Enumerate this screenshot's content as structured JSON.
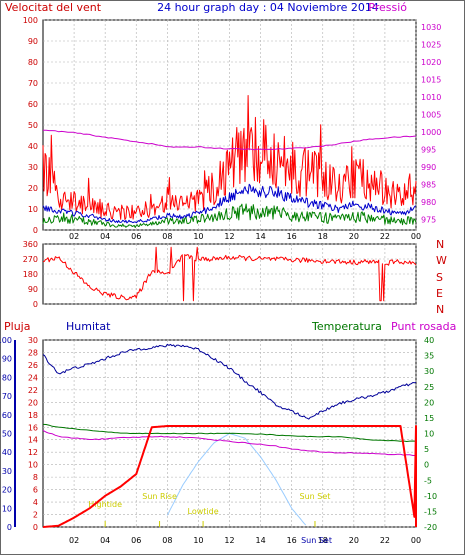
{
  "header": {
    "left": "Velocitat del vent",
    "center": "24 hour graph day : 04 Noviembre 2014",
    "right": "Pressió"
  },
  "colors": {
    "wind_gust": "#ff0000",
    "wind_avg": "#0000cc",
    "wind_min": "#008000",
    "pressure": "#cc00cc",
    "rain": "#ff0000",
    "humidity": "#000099",
    "temperature": "#007700",
    "dewpoint": "#cc00cc",
    "sun": "#99ccff",
    "sun_label": "#cccc00",
    "axis_wind": "#cc0000",
    "axis_pressure": "#cc00cc",
    "axis_humidity": "#0000aa",
    "axis_temp": "#007700"
  },
  "x_ticks": [
    "02",
    "04",
    "06",
    "08",
    "10",
    "12",
    "14",
    "16",
    "18",
    "20",
    "22",
    "00"
  ],
  "panel1": {
    "left_ticks": [
      "0",
      "10",
      "20",
      "30",
      "40",
      "50",
      "60",
      "70",
      "80",
      "90",
      "100"
    ],
    "right_ticks": [
      "975",
      "980",
      "985",
      "990",
      "995",
      "1000",
      "1005",
      "1010",
      "1015",
      "1020",
      "1025",
      "1030"
    ]
  },
  "panel2": {
    "left_ticks": [
      "0",
      "90",
      "180",
      "270",
      "360"
    ],
    "right_letters": [
      "N",
      "W",
      "S",
      "E",
      "N"
    ]
  },
  "panel3": {
    "label_rain": "Pluja",
    "label_hum": "Humitat",
    "label_temp": "Temperatura",
    "label_dew": "Punt rosada",
    "rain_ticks": [
      "0",
      "2",
      "4",
      "6",
      "8",
      "10",
      "12",
      "14",
      "16",
      "18",
      "20",
      "22",
      "24",
      "26",
      "28",
      "30"
    ],
    "hum_ticks": [
      "0",
      "10",
      "20",
      "30",
      "40",
      "50",
      "60",
      "70",
      "80",
      "90",
      "100"
    ],
    "temp_ticks": [
      "-20",
      "-15",
      "-10",
      "-5",
      "0",
      "5",
      "10",
      "15",
      "20",
      "25",
      "30",
      "35",
      "40"
    ],
    "sun_labels": {
      "rise": "Sun Rise",
      "set": "Sun Set",
      "low": "Lowtide",
      "high": "Hightide",
      "sun_set_bottom": "Sun Set"
    }
  },
  "chart_data": [
    {
      "type": "line",
      "title": "24 hour graph day : 04 Noviembre 2014",
      "ylabel": "Velocitat del vent",
      "y2label": "Pressió",
      "ylim": [
        0,
        100
      ],
      "y2lim": [
        972,
        1032
      ],
      "x": [
        0,
        1,
        2,
        3,
        4,
        5,
        6,
        7,
        8,
        9,
        10,
        11,
        12,
        13,
        14,
        15,
        16,
        17,
        18,
        19,
        20,
        21,
        22,
        23,
        24
      ],
      "series": [
        {
          "name": "gust",
          "values": [
            30,
            15,
            14,
            12,
            9,
            8,
            8,
            10,
            14,
            11,
            14,
            20,
            30,
            38,
            35,
            33,
            28,
            26,
            25,
            20,
            24,
            22,
            18,
            16,
            20
          ]
        },
        {
          "name": "average",
          "values": [
            10,
            9,
            8,
            7,
            5,
            4,
            4,
            5,
            7,
            6,
            8,
            11,
            16,
            20,
            19,
            18,
            15,
            13,
            12,
            10,
            12,
            11,
            9,
            8,
            10
          ]
        },
        {
          "name": "minimum",
          "values": [
            5,
            6,
            5,
            4,
            3,
            2,
            2,
            3,
            4,
            4,
            5,
            6,
            8,
            9,
            8,
            8,
            7,
            6,
            6,
            5,
            6,
            6,
            5,
            4,
            5
          ]
        },
        {
          "name": "pressure",
          "values": [
            1000.5,
            1000.2,
            999.8,
            999.2,
            998.5,
            997.9,
            997.2,
            996.6,
            995.8,
            995.6,
            995.8,
            995.4,
            995.2,
            995.1,
            995.0,
            995.1,
            995.3,
            995.6,
            996.0,
            996.6,
            997.3,
            997.9,
            998.3,
            998.6,
            998.8
          ]
        }
      ]
    },
    {
      "type": "scatter",
      "ylabel": "Direction",
      "ylim": [
        0,
        360
      ],
      "x": [
        0,
        1,
        2,
        3,
        4,
        5,
        6,
        7,
        8,
        9,
        10,
        11,
        12,
        13,
        14,
        15,
        16,
        17,
        18,
        19,
        20,
        21,
        22,
        23,
        24
      ],
      "series": [
        {
          "name": "wind direction",
          "values": [
            260,
            280,
            190,
            100,
            60,
            40,
            40,
            200,
            180,
            290,
            270,
            270,
            280,
            275,
            270,
            268,
            265,
            262,
            258,
            255,
            250,
            255,
            245,
            255,
            240
          ]
        }
      ]
    },
    {
      "type": "line",
      "ylabel": "Pluja",
      "ylim": [
        0,
        30
      ],
      "y2lim": [
        -20,
        40
      ],
      "x": [
        0,
        1,
        2,
        3,
        4,
        5,
        6,
        7,
        8,
        9,
        10,
        11,
        12,
        13,
        14,
        15,
        16,
        17,
        18,
        19,
        20,
        21,
        22,
        23,
        24
      ],
      "series": [
        {
          "name": "rain",
          "values": [
            0,
            0.2,
            1.5,
            3,
            5,
            6.5,
            8.5,
            16,
            16.2,
            16.2,
            16.2,
            16.2,
            16.2,
            16.2,
            16.2,
            16.2,
            16.2,
            16.2,
            16.2,
            16.2,
            16.2,
            16.2,
            16.2,
            16.2,
            0
          ]
        },
        {
          "name": "humidity",
          "values": [
            92,
            82,
            85,
            87,
            90,
            93,
            95,
            96,
            97,
            97,
            95,
            90,
            85,
            78,
            72,
            65,
            62,
            58,
            62,
            66,
            68,
            70,
            72,
            75,
            77
          ]
        },
        {
          "name": "temperature",
          "values": [
            13,
            12,
            11.5,
            11,
            10.5,
            10.2,
            10,
            10,
            10,
            10,
            10,
            10,
            10,
            10,
            9.8,
            9.5,
            9.3,
            9,
            9,
            9,
            8.5,
            8,
            7.8,
            7.5,
            7.5
          ]
        },
        {
          "name": "dewpoint",
          "values": [
            11,
            9,
            8.5,
            8.2,
            8.2,
            8.6,
            8.8,
            9,
            9,
            8.8,
            8.5,
            8,
            7.5,
            7,
            6.5,
            6,
            5,
            4.5,
            4,
            3.8,
            3.8,
            3.6,
            3.4,
            3.2,
            3
          ]
        },
        {
          "name": "sun",
          "values": [
            null,
            null,
            null,
            null,
            null,
            null,
            null,
            null,
            5,
            18,
            28,
            36,
            40,
            38,
            30,
            20,
            8,
            0,
            null,
            null,
            null,
            null,
            null,
            null,
            null
          ]
        }
      ]
    }
  ]
}
